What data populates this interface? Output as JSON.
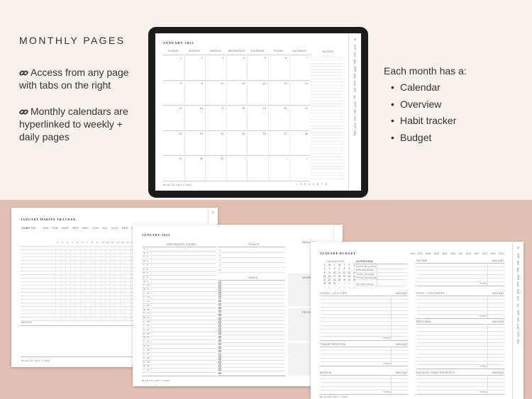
{
  "heading": "MONTHLY PAGES",
  "features": [
    "Access from any page with tabs on the right",
    "Monthly calendars are hyperlinked to weekly + daily pages"
  ],
  "feature_icon": "link-icon",
  "right": {
    "intro": "Each month has a:",
    "items": [
      "Calendar",
      "Overview",
      "Habit tracker",
      "Budget"
    ]
  },
  "colors": {
    "top_bg": "#f7f2ea",
    "bottom_bg": "#e2c1b3",
    "tablet": "#1b1b1b"
  },
  "side_tabs": [
    "2023",
    "JAN",
    "FEB",
    "MAR",
    "APR",
    "MAY",
    "JUN",
    "JUL",
    "AUG",
    "SEP",
    "OCT",
    "NOV",
    "DEC"
  ],
  "months": [
    "JAN",
    "FEB",
    "MAR",
    "APR",
    "MAY",
    "JUN",
    "JUL",
    "AUG",
    "SEP",
    "OCT",
    "NOV",
    "DEC"
  ],
  "footer": "BLUE CAT LOFT © 2023",
  "page_nav": [
    "1",
    "2",
    "3",
    "4",
    "5",
    "6",
    "7",
    "8"
  ],
  "calendar": {
    "title": "JANUARY 2023",
    "days": [
      "SUNDAY",
      "MONDAY",
      "TUESDAY",
      "WEDNESDAY",
      "THURSDAY",
      "FRIDAY",
      "SATURDAY"
    ],
    "notes_label": "NOTES",
    "weeks": [
      [
        "1",
        "2",
        "3",
        "4",
        "5",
        "6",
        "7"
      ],
      [
        "8",
        "9",
        "10",
        "11",
        "12",
        "13",
        "14"
      ],
      [
        "15",
        "16",
        "17",
        "18",
        "19",
        "20",
        "21"
      ],
      [
        "22",
        "23",
        "24",
        "25",
        "26",
        "27",
        "28"
      ],
      [
        "29",
        "30",
        "31",
        "1",
        "2",
        "3",
        "4"
      ]
    ]
  },
  "habits": {
    "title": "JANUARY HABITS TRACKER",
    "jump_label": "JUMP TO:",
    "notes_label": "NOTES",
    "days": [
      "1",
      "2",
      "3",
      "4",
      "5",
      "6",
      "7",
      "8",
      "9",
      "10",
      "11",
      "12",
      "13",
      "14",
      "15",
      "16",
      "17"
    ]
  },
  "overview": {
    "title": "JANUARY 2023",
    "important_dates": "IMPORTANT DATES",
    "goals": "GOALS",
    "tasks": "TASKS",
    "work": "WORK",
    "personal": "PERSONAL",
    "mini_title": "JANUARY",
    "goal_numbers": [
      "1",
      "2",
      "3",
      "4",
      "5"
    ],
    "dates": [
      [
        "S",
        "1"
      ],
      [
        "M",
        "2"
      ],
      [
        "T",
        "3"
      ],
      [
        "W",
        "4"
      ],
      [
        "T",
        "5"
      ],
      [
        "F",
        "6"
      ],
      [
        "S",
        "7"
      ],
      [
        "S",
        "8"
      ],
      [
        "M",
        "9"
      ],
      [
        "T",
        "10"
      ],
      [
        "W",
        "11"
      ],
      [
        "T",
        "12"
      ],
      [
        "F",
        "13"
      ],
      [
        "S",
        "14"
      ],
      [
        "S",
        "15"
      ],
      [
        "M",
        "16"
      ],
      [
        "T",
        "17"
      ],
      [
        "W",
        "18"
      ],
      [
        "T",
        "19"
      ],
      [
        "F",
        "20"
      ],
      [
        "S",
        "21"
      ],
      [
        "S",
        "22"
      ],
      [
        "M",
        "23"
      ],
      [
        "T",
        "24"
      ],
      [
        "W",
        "25"
      ],
      [
        "T",
        "26"
      ],
      [
        "F",
        "27"
      ],
      [
        "S",
        "28"
      ],
      [
        "S",
        "29"
      ],
      [
        "M",
        "30"
      ],
      [
        "T",
        "31"
      ]
    ]
  },
  "budget": {
    "title": "JANUARY BUDGET",
    "mini_title": "JANUARY",
    "mini_days": [
      "S",
      "M",
      "T",
      "W",
      "T",
      "F",
      "S"
    ],
    "mini_weeks": [
      [
        "1",
        "2",
        "3",
        "4",
        "5",
        "6",
        "7"
      ],
      [
        "8",
        "9",
        "10",
        "11",
        "12",
        "13",
        "14"
      ],
      [
        "15",
        "16",
        "17",
        "18",
        "19",
        "20",
        "21"
      ],
      [
        "22",
        "23",
        "24",
        "25",
        "26",
        "27",
        "28"
      ],
      [
        "29",
        "30",
        "31",
        "1",
        "2",
        "3",
        "4"
      ],
      [
        "5",
        "6",
        "7",
        "8",
        "9",
        "10",
        "11"
      ]
    ],
    "overview_label": "OVERVIEW",
    "overview_rows": [
      "START BALANCE",
      "END BALANCE",
      "TOTAL INCOME",
      "TOTAL EXPENSES"
    ],
    "net_balance": "NET BALANCE",
    "amount": "AMOUNT",
    "total": "TOTAL",
    "sections_left": [
      "HOUSE + UTILITIES",
      "TRANSPORTATION",
      "MEDICAL"
    ],
    "sections_right": [
      "INCOME",
      "FOOD + GROCERIES",
      "PERSONAL",
      "SAVINGS / DEBT PAYMENTS"
    ]
  }
}
